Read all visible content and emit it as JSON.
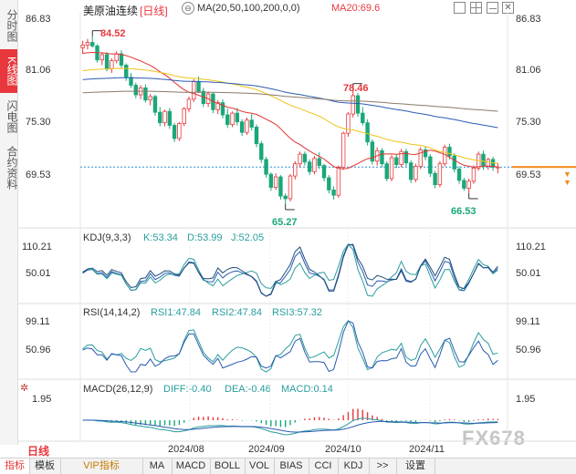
{
  "sidebar": {
    "tabs": [
      {
        "label": "分时图",
        "active": false
      },
      {
        "label": "K线图",
        "active": true
      },
      {
        "label": "闪电图",
        "active": false
      },
      {
        "label": "合约资料",
        "active": false
      }
    ]
  },
  "header": {
    "instrument": "美原油连续",
    "period_tag": "[日线]",
    "ma_params": "MA(20,50,100,200,0,0)",
    "ma20_value": "MA20:69.6"
  },
  "main_axis": {
    "left_ticks": [
      "86.83",
      "81.06",
      "75.30",
      "69.53"
    ],
    "right_ticks": [
      "86.83",
      "81.06",
      "75.30",
      "69.53"
    ]
  },
  "annotations": {
    "high_1": "84.52",
    "high_2": "78.46",
    "low_1": "65.27",
    "low_2": "66.53"
  },
  "kdj": {
    "title": "KDJ(9,3,3)",
    "k": "K:53.34",
    "d": "D:53.99",
    "j": "J:52.05",
    "ticks": [
      "110.21",
      "50.01"
    ]
  },
  "rsi": {
    "title": "RSI(14,14,2)",
    "rsi1": "RSI1:47.84",
    "rsi2": "RSI2:47.84",
    "rsi3": "RSI3:57.32",
    "ticks": [
      "99.11",
      "50.96"
    ]
  },
  "macd": {
    "title": "MACD(26,12,9)",
    "diff": "DIFF:-0.40",
    "dea": "DEA:-0.46",
    "macd": "MACD:0.14",
    "ticks": [
      "1.95"
    ]
  },
  "x_axis": {
    "period_label": "日线",
    "dates": [
      "2024/08",
      "2024/09",
      "2024/10",
      "2024/11"
    ]
  },
  "watermark": "FX678",
  "bottom_tabs": [
    "指标",
    "模板",
    "VIP指标",
    "MA",
    "MACD",
    "BOLL",
    "VOL",
    "BIAS",
    "CCI",
    "KDJ",
    ">>",
    "设置"
  ],
  "colors": {
    "up": "#e8383d",
    "down": "#1aa77a",
    "ma20": "#e0342f",
    "ma50": "#f0c419",
    "ma100": "#2a5bb0",
    "ma200": "#8a7a6a",
    "last_price": "#f08a1c"
  },
  "chart_data": {
    "type": "candlestick",
    "price_range": [
      63,
      87
    ],
    "price_ticks": [
      86.83,
      81.06,
      75.3,
      69.53
    ],
    "last_price": 69.53,
    "x_ticks": [
      "2024/08",
      "2024/09",
      "2024/10",
      "2024/11"
    ],
    "marked_high": [
      84.52,
      78.46
    ],
    "marked_low": [
      65.27,
      66.53
    ],
    "candles": [
      [
        83.2,
        84.0,
        82.5,
        83.5
      ],
      [
        83.5,
        84.2,
        83.0,
        83.8
      ],
      [
        83.8,
        84.52,
        83.2,
        83.4
      ],
      [
        83.4,
        83.6,
        81.5,
        81.8
      ],
      [
        81.8,
        82.6,
        81.2,
        82.4
      ],
      [
        82.4,
        82.7,
        80.5,
        80.8
      ],
      [
        80.8,
        82.0,
        80.3,
        81.7
      ],
      [
        81.7,
        82.8,
        81.4,
        82.5
      ],
      [
        82.5,
        82.9,
        80.9,
        81.2
      ],
      [
        81.2,
        81.4,
        79.4,
        79.8
      ],
      [
        79.8,
        80.3,
        78.6,
        78.9
      ],
      [
        78.9,
        79.2,
        77.4,
        77.8
      ],
      [
        77.8,
        78.9,
        77.3,
        78.6
      ],
      [
        78.6,
        79.0,
        76.9,
        77.2
      ],
      [
        77.2,
        77.9,
        76.6,
        77.6
      ],
      [
        77.6,
        77.8,
        75.4,
        75.8
      ],
      [
        75.8,
        76.4,
        74.2,
        74.6
      ],
      [
        74.6,
        76.1,
        74.2,
        75.9
      ],
      [
        75.9,
        76.3,
        73.9,
        74.3
      ],
      [
        74.3,
        74.6,
        72.4,
        72.8
      ],
      [
        72.8,
        74.7,
        72.5,
        74.5
      ],
      [
        74.5,
        76.4,
        74.2,
        76.2
      ],
      [
        76.2,
        77.6,
        75.8,
        77.3
      ],
      [
        77.3,
        79.6,
        77.0,
        79.3
      ],
      [
        79.3,
        79.9,
        78.0,
        78.2
      ],
      [
        78.2,
        78.6,
        76.4,
        76.8
      ],
      [
        76.8,
        78.2,
        76.4,
        77.9
      ],
      [
        77.9,
        78.1,
        75.7,
        76.1
      ],
      [
        76.1,
        77.2,
        75.6,
        76.9
      ],
      [
        76.9,
        77.3,
        75.1,
        75.5
      ],
      [
        75.5,
        76.2,
        74.0,
        74.4
      ],
      [
        74.4,
        75.9,
        74.1,
        75.7
      ],
      [
        75.7,
        76.3,
        74.3,
        74.7
      ],
      [
        74.7,
        75.0,
        73.1,
        73.5
      ],
      [
        73.5,
        75.2,
        73.2,
        74.9
      ],
      [
        74.9,
        75.6,
        73.7,
        74.1
      ],
      [
        74.1,
        74.4,
        71.8,
        72.2
      ],
      [
        72.2,
        72.5,
        70.0,
        70.4
      ],
      [
        70.4,
        70.7,
        68.3,
        68.7
      ],
      [
        68.7,
        68.9,
        66.8,
        67.2
      ],
      [
        67.2,
        68.8,
        66.9,
        68.4
      ],
      [
        68.4,
        68.6,
        65.8,
        66.2
      ],
      [
        66.2,
        66.5,
        65.27,
        65.9
      ],
      [
        65.9,
        68.7,
        65.6,
        68.5
      ],
      [
        68.5,
        70.2,
        68.1,
        69.9
      ],
      [
        69.9,
        71.3,
        69.5,
        71.0
      ],
      [
        71.0,
        71.3,
        69.7,
        70.1
      ],
      [
        70.1,
        70.4,
        68.6,
        69.0
      ],
      [
        69.0,
        70.8,
        68.7,
        70.5
      ],
      [
        70.5,
        71.2,
        69.3,
        69.7
      ],
      [
        69.7,
        69.9,
        67.9,
        68.3
      ],
      [
        68.3,
        68.6,
        66.5,
        66.9
      ],
      [
        66.9,
        67.3,
        65.8,
        66.3
      ],
      [
        66.3,
        69.7,
        66.0,
        69.5
      ],
      [
        69.5,
        73.6,
        69.2,
        73.4
      ],
      [
        73.4,
        75.8,
        73.0,
        75.6
      ],
      [
        75.6,
        78.46,
        75.2,
        77.7
      ],
      [
        77.7,
        78.0,
        75.3,
        75.7
      ],
      [
        75.7,
        76.4,
        74.3,
        74.6
      ],
      [
        74.6,
        75.0,
        72.0,
        72.4
      ],
      [
        72.4,
        72.7,
        69.8,
        70.2
      ],
      [
        70.2,
        71.8,
        69.7,
        71.4
      ],
      [
        71.4,
        71.7,
        69.5,
        69.9
      ],
      [
        69.9,
        70.2,
        67.9,
        68.2
      ],
      [
        68.2,
        70.9,
        67.9,
        70.6
      ],
      [
        70.6,
        71.0,
        69.4,
        69.8
      ],
      [
        69.8,
        71.6,
        69.5,
        71.3
      ],
      [
        71.3,
        71.6,
        69.6,
        70.0
      ],
      [
        70.0,
        70.3,
        67.7,
        68.1
      ],
      [
        68.1,
        69.9,
        67.8,
        69.6
      ],
      [
        69.6,
        71.8,
        69.3,
        71.5
      ],
      [
        71.5,
        71.9,
        70.3,
        70.7
      ],
      [
        70.7,
        71.0,
        68.4,
        68.8
      ],
      [
        68.8,
        69.1,
        67.1,
        67.5
      ],
      [
        67.5,
        70.2,
        67.2,
        69.9
      ],
      [
        69.9,
        72.1,
        69.6,
        71.8
      ],
      [
        71.8,
        72.2,
        70.4,
        70.8
      ],
      [
        70.8,
        71.1,
        68.9,
        69.3
      ],
      [
        69.3,
        69.6,
        67.6,
        68.0
      ],
      [
        68.0,
        68.3,
        66.8,
        67.1
      ],
      [
        67.1,
        68.2,
        66.53,
        67.9
      ],
      [
        67.9,
        69.7,
        67.6,
        69.4
      ],
      [
        69.4,
        71.3,
        69.1,
        71.0
      ],
      [
        71.0,
        71.4,
        69.2,
        69.6
      ],
      [
        69.6,
        70.6,
        69.2,
        70.4
      ],
      [
        70.4,
        70.7,
        69.1,
        69.5
      ],
      [
        69.5,
        70.0,
        68.8,
        69.53
      ]
    ]
  }
}
